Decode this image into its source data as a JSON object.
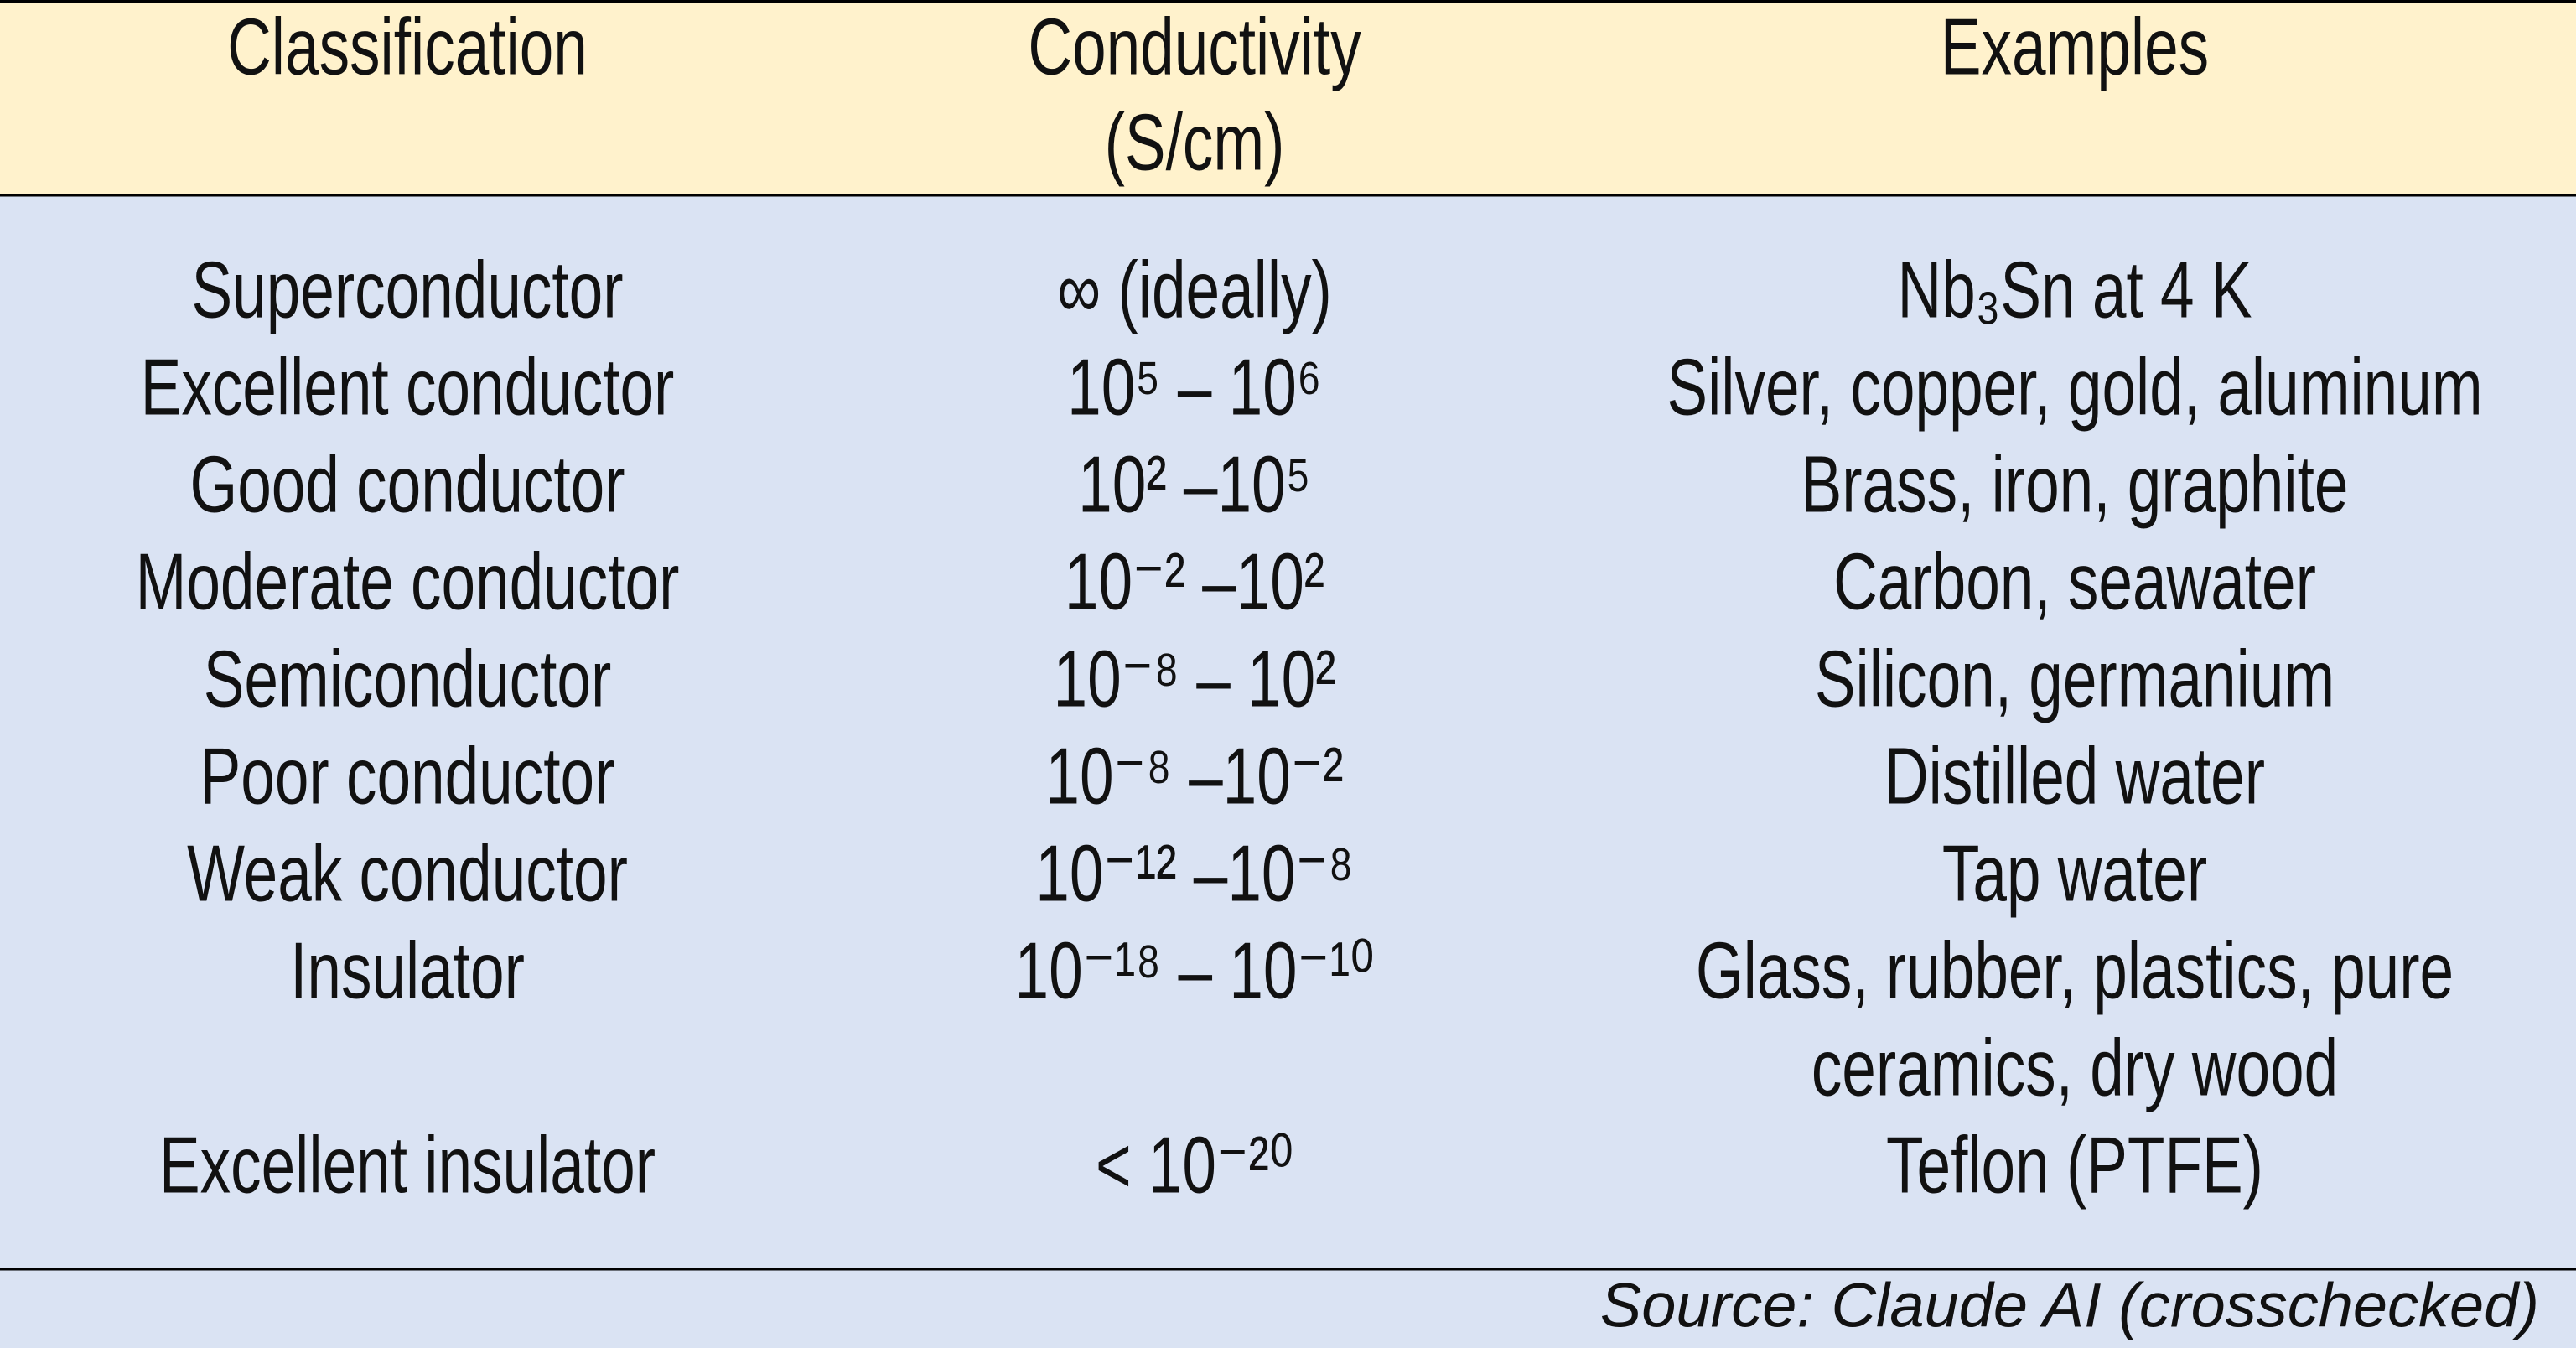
{
  "table": {
    "header": [
      [
        "Classification"
      ],
      [
        "Conductivity",
        "(S/cm)"
      ],
      [
        "Examples"
      ]
    ],
    "rows": [
      [
        "Superconductor",
        "∞ (ideally)",
        [
          "Nb₃Sn at 4 K"
        ]
      ],
      [
        "Excellent conductor",
        "10⁵ – 10⁶",
        [
          "Silver, copper, gold, aluminum"
        ]
      ],
      [
        "Good conductor",
        "10² –10⁵",
        [
          "Brass, iron, graphite"
        ]
      ],
      [
        "Moderate conductor",
        "10⁻² –10²",
        [
          "Carbon, seawater"
        ]
      ],
      [
        "Semiconductor",
        "10⁻⁸ – 10²",
        [
          "Silicon, germanium"
        ]
      ],
      [
        "Poor conductor",
        "10⁻⁸ –10⁻²",
        [
          "Distilled water"
        ]
      ],
      [
        "Weak conductor",
        "10⁻¹² –10⁻⁸",
        [
          "Tap water"
        ]
      ],
      [
        "Insulator",
        "10⁻¹⁸ – 10⁻¹⁰",
        [
          "Glass, rubber, plastics, pure",
          "ceramics, dry wood"
        ]
      ],
      [
        "Excellent insulator",
        "< 10⁻²⁰",
        [
          "Teflon (PTFE)"
        ]
      ]
    ],
    "source": "Source: Claude AI (crosschecked)"
  }
}
